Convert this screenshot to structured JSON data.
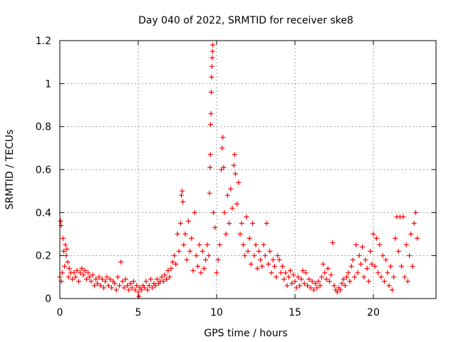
{
  "chart_data": {
    "type": "scatter",
    "title": "Day 040 of 2022, SRMTID for receiver ske8",
    "xlabel": "GPS time / hours",
    "ylabel": "SRMTID / TECUs",
    "xlim": [
      0,
      24
    ],
    "ylim": [
      0,
      1.2
    ],
    "grid": true,
    "marker": "+",
    "color": "#ff0000",
    "x_ticks": [
      0,
      5,
      10,
      15,
      20
    ],
    "x_tick_labels": [
      "0",
      "5",
      "10",
      "15",
      "20"
    ],
    "y_ticks": [
      0,
      0.2,
      0.4,
      0.6,
      0.8,
      1,
      1.2
    ],
    "y_tick_labels": [
      "0",
      "0.2",
      "0.4",
      "0.6",
      "0.8",
      "1",
      "1.2"
    ],
    "series": [
      {
        "name": "SRMTID",
        "points": [
          [
            0.0,
            0.1
          ],
          [
            0.05,
            0.36
          ],
          [
            0.08,
            0.34
          ],
          [
            0.1,
            0.08
          ],
          [
            0.15,
            0.12
          ],
          [
            0.2,
            0.28
          ],
          [
            0.25,
            0.22
          ],
          [
            0.3,
            0.15
          ],
          [
            0.35,
            0.25
          ],
          [
            0.4,
            0.2
          ],
          [
            0.45,
            0.23
          ],
          [
            0.5,
            0.17
          ],
          [
            0.55,
            0.1
          ],
          [
            0.6,
            0.14
          ],
          [
            0.7,
            0.12
          ],
          [
            0.8,
            0.09
          ],
          [
            0.9,
            0.12
          ],
          [
            1.0,
            0.1
          ],
          [
            1.1,
            0.13
          ],
          [
            1.2,
            0.08
          ],
          [
            1.3,
            0.12
          ],
          [
            1.4,
            0.14
          ],
          [
            1.5,
            0.11
          ],
          [
            1.6,
            0.13
          ],
          [
            1.7,
            0.09
          ],
          [
            1.8,
            0.12
          ],
          [
            1.9,
            0.1
          ],
          [
            2.0,
            0.08
          ],
          [
            2.1,
            0.11
          ],
          [
            2.2,
            0.06
          ],
          [
            2.3,
            0.09
          ],
          [
            2.4,
            0.07
          ],
          [
            2.5,
            0.1
          ],
          [
            2.6,
            0.06
          ],
          [
            2.7,
            0.09
          ],
          [
            2.8,
            0.05
          ],
          [
            2.9,
            0.08
          ],
          [
            3.0,
            0.1
          ],
          [
            3.1,
            0.06
          ],
          [
            3.2,
            0.09
          ],
          [
            3.3,
            0.05
          ],
          [
            3.4,
            0.08
          ],
          [
            3.5,
            0.07
          ],
          [
            3.6,
            0.04
          ],
          [
            3.7,
            0.1
          ],
          [
            3.8,
            0.06
          ],
          [
            3.9,
            0.17
          ],
          [
            4.0,
            0.08
          ],
          [
            4.1,
            0.05
          ],
          [
            4.2,
            0.09
          ],
          [
            4.3,
            0.06
          ],
          [
            4.4,
            0.04
          ],
          [
            4.5,
            0.07
          ],
          [
            4.6,
            0.05
          ],
          [
            4.7,
            0.08
          ],
          [
            4.8,
            0.04
          ],
          [
            4.9,
            0.06
          ],
          [
            5.0,
            0.03
          ],
          [
            5.05,
            0.01
          ],
          [
            5.1,
            0.05
          ],
          [
            5.2,
            0.04
          ],
          [
            5.3,
            0.06
          ],
          [
            5.4,
            0.05
          ],
          [
            5.5,
            0.08
          ],
          [
            5.6,
            0.04
          ],
          [
            5.7,
            0.06
          ],
          [
            5.8,
            0.09
          ],
          [
            5.9,
            0.05
          ],
          [
            6.0,
            0.07
          ],
          [
            6.1,
            0.06
          ],
          [
            6.2,
            0.09
          ],
          [
            6.3,
            0.07
          ],
          [
            6.4,
            0.08
          ],
          [
            6.5,
            0.1
          ],
          [
            6.6,
            0.08
          ],
          [
            6.7,
            0.11
          ],
          [
            6.8,
            0.09
          ],
          [
            6.9,
            0.13
          ],
          [
            7.0,
            0.1
          ],
          [
            7.1,
            0.14
          ],
          [
            7.2,
            0.17
          ],
          [
            7.3,
            0.2
          ],
          [
            7.4,
            0.16
          ],
          [
            7.5,
            0.3
          ],
          [
            7.6,
            0.22
          ],
          [
            7.7,
            0.35
          ],
          [
            7.75,
            0.48
          ],
          [
            7.8,
            0.5
          ],
          [
            7.85,
            0.45
          ],
          [
            7.9,
            0.25
          ],
          [
            8.0,
            0.3
          ],
          [
            8.1,
            0.18
          ],
          [
            8.2,
            0.36
          ],
          [
            8.3,
            0.22
          ],
          [
            8.4,
            0.28
          ],
          [
            8.5,
            0.13
          ],
          [
            8.6,
            0.4
          ],
          [
            8.7,
            0.2
          ],
          [
            8.8,
            0.15
          ],
          [
            8.9,
            0.25
          ],
          [
            9.0,
            0.12
          ],
          [
            9.1,
            0.22
          ],
          [
            9.2,
            0.14
          ],
          [
            9.3,
            0.18
          ],
          [
            9.4,
            0.25
          ],
          [
            9.5,
            0.2
          ],
          [
            9.55,
            0.49
          ],
          [
            9.58,
            0.61
          ],
          [
            9.6,
            0.67
          ],
          [
            9.62,
            0.81
          ],
          [
            9.64,
            0.86
          ],
          [
            9.66,
            0.96
          ],
          [
            9.68,
            1.03
          ],
          [
            9.7,
            1.08
          ],
          [
            9.72,
            1.12
          ],
          [
            9.74,
            1.15
          ],
          [
            9.76,
            1.18
          ],
          [
            9.8,
            0.4
          ],
          [
            9.9,
            0.33
          ],
          [
            10.0,
            0.12
          ],
          [
            10.1,
            0.18
          ],
          [
            10.2,
            0.25
          ],
          [
            10.3,
            0.6
          ],
          [
            10.35,
            0.7
          ],
          [
            10.4,
            0.75
          ],
          [
            10.45,
            0.61
          ],
          [
            10.5,
            0.4
          ],
          [
            10.6,
            0.3
          ],
          [
            10.7,
            0.48
          ],
          [
            10.8,
            0.35
          ],
          [
            10.9,
            0.51
          ],
          [
            11.0,
            0.42
          ],
          [
            11.1,
            0.62
          ],
          [
            11.15,
            0.67
          ],
          [
            11.2,
            0.58
          ],
          [
            11.3,
            0.44
          ],
          [
            11.4,
            0.54
          ],
          [
            11.5,
            0.3
          ],
          [
            11.6,
            0.35
          ],
          [
            11.7,
            0.25
          ],
          [
            11.8,
            0.2
          ],
          [
            11.9,
            0.38
          ],
          [
            12.0,
            0.22
          ],
          [
            12.1,
            0.28
          ],
          [
            12.2,
            0.16
          ],
          [
            12.3,
            0.35
          ],
          [
            12.4,
            0.2
          ],
          [
            12.5,
            0.25
          ],
          [
            12.6,
            0.14
          ],
          [
            12.7,
            0.22
          ],
          [
            12.8,
            0.18
          ],
          [
            12.9,
            0.15
          ],
          [
            13.0,
            0.25
          ],
          [
            13.1,
            0.2
          ],
          [
            13.2,
            0.35
          ],
          [
            13.3,
            0.16
          ],
          [
            13.4,
            0.22
          ],
          [
            13.5,
            0.12
          ],
          [
            13.6,
            0.18
          ],
          [
            13.7,
            0.15
          ],
          [
            13.8,
            0.1
          ],
          [
            13.9,
            0.2
          ],
          [
            14.0,
            0.18
          ],
          [
            14.1,
            0.12
          ],
          [
            14.2,
            0.15
          ],
          [
            14.3,
            0.09
          ],
          [
            14.4,
            0.12
          ],
          [
            14.5,
            0.06
          ],
          [
            14.6,
            0.1
          ],
          [
            14.7,
            0.13
          ],
          [
            14.8,
            0.07
          ],
          [
            14.9,
            0.11
          ],
          [
            15.0,
            0.08
          ],
          [
            15.1,
            0.05
          ],
          [
            15.2,
            0.1
          ],
          [
            15.3,
            0.06
          ],
          [
            15.4,
            0.09
          ],
          [
            15.5,
            0.13
          ],
          [
            15.6,
            0.07
          ],
          [
            15.7,
            0.12
          ],
          [
            15.8,
            0.06
          ],
          [
            15.9,
            0.09
          ],
          [
            16.0,
            0.05
          ],
          [
            16.1,
            0.08
          ],
          [
            16.2,
            0.04
          ],
          [
            16.3,
            0.07
          ],
          [
            16.4,
            0.05
          ],
          [
            16.5,
            0.08
          ],
          [
            16.6,
            0.06
          ],
          [
            16.7,
            0.1
          ],
          [
            16.8,
            0.16
          ],
          [
            16.9,
            0.12
          ],
          [
            17.0,
            0.09
          ],
          [
            17.1,
            0.14
          ],
          [
            17.2,
            0.08
          ],
          [
            17.3,
            0.11
          ],
          [
            17.4,
            0.26
          ],
          [
            17.5,
            0.06
          ],
          [
            17.6,
            0.04
          ],
          [
            17.7,
            0.03
          ],
          [
            17.8,
            0.05
          ],
          [
            17.9,
            0.04
          ],
          [
            18.0,
            0.07
          ],
          [
            18.1,
            0.09
          ],
          [
            18.2,
            0.06
          ],
          [
            18.3,
            0.1
          ],
          [
            18.4,
            0.12
          ],
          [
            18.5,
            0.08
          ],
          [
            18.6,
            0.15
          ],
          [
            18.7,
            0.18
          ],
          [
            18.8,
            0.1
          ],
          [
            18.9,
            0.25
          ],
          [
            19.0,
            0.12
          ],
          [
            19.1,
            0.2
          ],
          [
            19.2,
            0.16
          ],
          [
            19.3,
            0.24
          ],
          [
            19.4,
            0.1
          ],
          [
            19.5,
            0.18
          ],
          [
            19.6,
            0.14
          ],
          [
            19.7,
            0.08
          ],
          [
            19.8,
            0.22
          ],
          [
            19.9,
            0.16
          ],
          [
            20.0,
            0.3
          ],
          [
            20.1,
            0.15
          ],
          [
            20.2,
            0.28
          ],
          [
            20.3,
            0.12
          ],
          [
            20.4,
            0.25
          ],
          [
            20.5,
            0.1
          ],
          [
            20.6,
            0.2
          ],
          [
            20.7,
            0.08
          ],
          [
            20.8,
            0.18
          ],
          [
            20.9,
            0.12
          ],
          [
            21.0,
            0.06
          ],
          [
            21.1,
            0.15
          ],
          [
            21.2,
            0.04
          ],
          [
            21.3,
            0.1
          ],
          [
            21.4,
            0.28
          ],
          [
            21.5,
            0.38
          ],
          [
            21.6,
            0.22
          ],
          [
            21.7,
            0.38
          ],
          [
            21.8,
            0.15
          ],
          [
            21.9,
            0.38
          ],
          [
            22.0,
            0.1
          ],
          [
            22.1,
            0.25
          ],
          [
            22.2,
            0.08
          ],
          [
            22.3,
            0.2
          ],
          [
            22.4,
            0.3
          ],
          [
            22.5,
            0.15
          ],
          [
            22.6,
            0.35
          ],
          [
            22.7,
            0.4
          ],
          [
            22.8,
            0.28
          ]
        ]
      }
    ]
  }
}
